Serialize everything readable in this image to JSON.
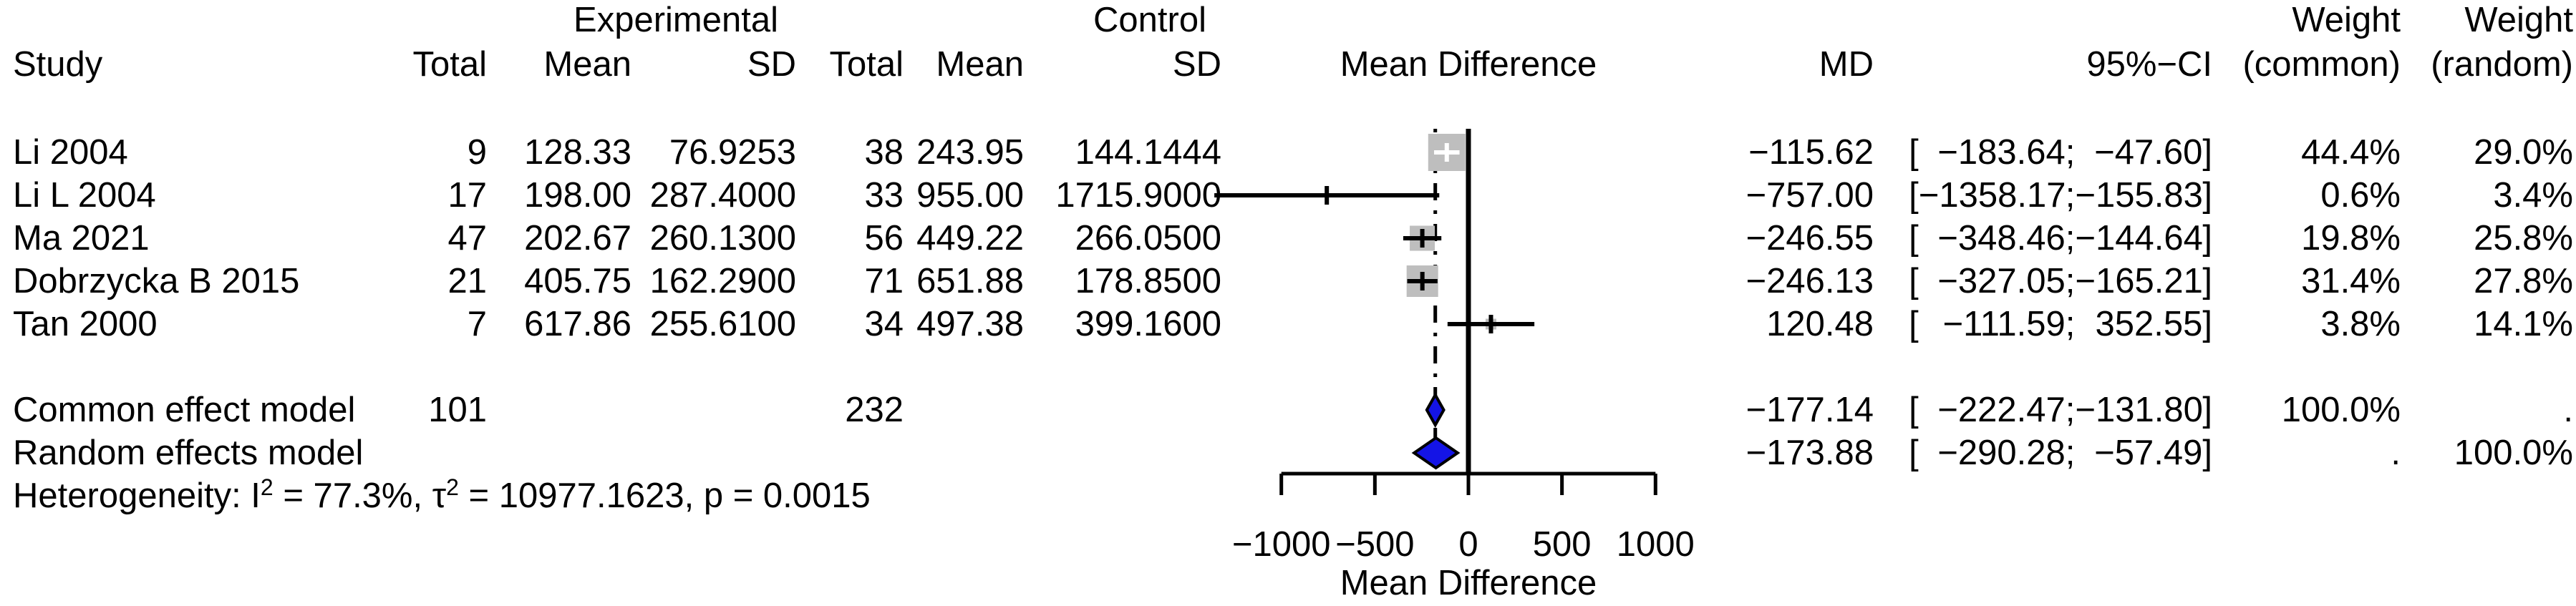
{
  "header": {
    "study": "Study",
    "experimental": "Experimental",
    "control": "Control",
    "exp_total": "Total",
    "exp_mean": "Mean",
    "exp_sd": "SD",
    "ctrl_total": "Total",
    "ctrl_mean": "Mean",
    "ctrl_sd": "SD",
    "mean_difference": "Mean Difference",
    "md": "MD",
    "ci": "95%−CI",
    "weight_common_line1": "Weight",
    "weight_common_line2": "(common)",
    "weight_random_line1": "Weight",
    "weight_random_line2": "(random)"
  },
  "chart_data": {
    "type": "forest",
    "xlabel": "Mean Difference",
    "xlim": [
      -1000,
      1000
    ],
    "x_ticks": [
      -1000,
      -500,
      0,
      500,
      1000
    ],
    "x_tick_labels": [
      "−1000",
      "−500",
      "0",
      "500",
      "1000"
    ],
    "zero_line": 0,
    "grid": false,
    "studies": [
      {
        "name": "Li 2004",
        "exp_total": "9",
        "exp_mean": "128.33",
        "exp_sd": "76.9253",
        "ctrl_total": "38",
        "ctrl_mean": "243.95",
        "ctrl_sd": "144.1444",
        "md": -115.62,
        "ci_lower": -183.64,
        "ci_upper": -47.6,
        "md_label": "−115.62",
        "ci_lower_label": "−183.64",
        "ci_upper_label": "−47.60",
        "weight_common": 44.4,
        "weight_random": 29.0,
        "weight_common_label": "44.4%",
        "weight_random_label": "29.0%"
      },
      {
        "name": "Li L 2004",
        "exp_total": "17",
        "exp_mean": "198.00",
        "exp_sd": "287.4000",
        "ctrl_total": "33",
        "ctrl_mean": "955.00",
        "ctrl_sd": "1715.9000",
        "md": -757.0,
        "ci_lower": -1358.17,
        "ci_upper": -155.83,
        "md_label": "−757.00",
        "ci_lower_label": "−1358.17",
        "ci_upper_label": "−155.83",
        "weight_common": 0.6,
        "weight_random": 3.4,
        "weight_common_label": "0.6%",
        "weight_random_label": "3.4%"
      },
      {
        "name": "Ma 2021",
        "exp_total": "47",
        "exp_mean": "202.67",
        "exp_sd": "260.1300",
        "ctrl_total": "56",
        "ctrl_mean": "449.22",
        "ctrl_sd": "266.0500",
        "md": -246.55,
        "ci_lower": -348.46,
        "ci_upper": -144.64,
        "md_label": "−246.55",
        "ci_lower_label": "−348.46",
        "ci_upper_label": "−144.64",
        "weight_common": 19.8,
        "weight_random": 25.8,
        "weight_common_label": "19.8%",
        "weight_random_label": "25.8%"
      },
      {
        "name": "Dobrzycka B 2015",
        "exp_total": "21",
        "exp_mean": "405.75",
        "exp_sd": "162.2900",
        "ctrl_total": "71",
        "ctrl_mean": "651.88",
        "ctrl_sd": "178.8500",
        "md": -246.13,
        "ci_lower": -327.05,
        "ci_upper": -165.21,
        "md_label": "−246.13",
        "ci_lower_label": "−327.05",
        "ci_upper_label": "−165.21",
        "weight_common": 31.4,
        "weight_random": 27.8,
        "weight_common_label": "31.4%",
        "weight_random_label": "27.8%"
      },
      {
        "name": "Tan 2000",
        "exp_total": "7",
        "exp_mean": "617.86",
        "exp_sd": "255.6100",
        "ctrl_total": "34",
        "ctrl_mean": "497.38",
        "ctrl_sd": "399.1600",
        "md": 120.48,
        "ci_lower": -111.59,
        "ci_upper": 352.55,
        "md_label": "120.48",
        "ci_lower_label": "−111.59",
        "ci_upper_label": "352.55",
        "weight_common": 3.8,
        "weight_random": 14.1,
        "weight_common_label": "3.8%",
        "weight_random_label": "14.1%"
      }
    ],
    "summaries": [
      {
        "name": "Common effect model",
        "exp_total": "101",
        "ctrl_total": "232",
        "md": -177.14,
        "ci_lower": -222.47,
        "ci_upper": -131.8,
        "md_label": "−177.14",
        "ci_lower_label": "−222.47",
        "ci_upper_label": "−131.80",
        "weight_common_label": "100.0%",
        "weight_random_label": ".",
        "diamond": "common"
      },
      {
        "name": "Random effects model",
        "exp_total": "",
        "ctrl_total": "",
        "md": -173.88,
        "ci_lower": -290.28,
        "ci_upper": -57.49,
        "md_label": "−173.88",
        "ci_lower_label": "−290.28",
        "ci_upper_label": "−57.49",
        "weight_common_label": ".",
        "weight_random_label": "100.0%",
        "diamond": "random"
      }
    ],
    "heterogeneity": {
      "prefix": "Heterogeneity: I",
      "sup1": "2",
      "mid": " = 77.3%, τ",
      "sup2": "2",
      "suffix": " = 10977.1623, p = 0.0015"
    },
    "colors": {
      "square": "#bebebe",
      "diamond": "#1414e6",
      "line": "#000000",
      "background": "#ffffff"
    }
  }
}
